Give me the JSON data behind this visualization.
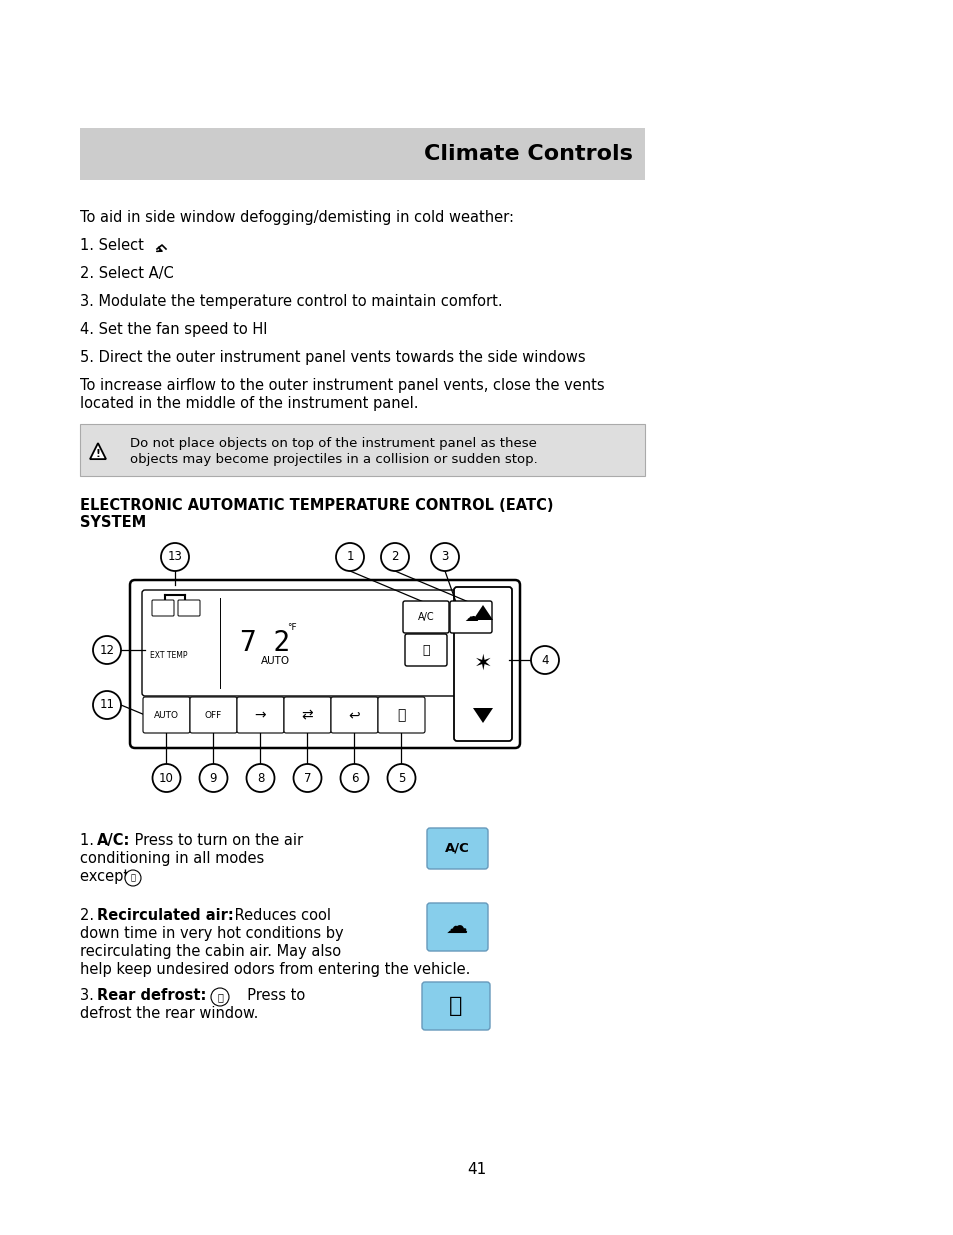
{
  "page_bg": "#ffffff",
  "title_bg": "#cccccc",
  "title_text": "Climate Controls",
  "body_fontsize": 10.5,
  "warning_text_line1": "Do not place objects on top of the instrument panel as these",
  "warning_text_line2": "objects may become projectiles in a collision or sudden stop.",
  "section_header_line1": "ELECTRONIC AUTOMATIC TEMPERATURE CONTROL (EATC)",
  "section_header_line2": "SYSTEM",
  "intro_text": "To aid in side window defogging/demisting in cold weather:",
  "step1_pre": "1. Select ",
  "step2": "2. Select A/C",
  "step3": "3. Modulate the temperature control to maintain comfort.",
  "step4": "4. Set the fan speed to HI",
  "step5": "5. Direct the outer instrument panel vents towards the side windows",
  "step6_line1": "To increase airflow to the outer instrument panel vents, close the vents",
  "step6_line2": "located in the middle of the instrument panel.",
  "desc1_num": "1. ",
  "desc1_bold": "A/C:",
  "desc1_text_line1": " Press to turn on the air",
  "desc1_text_line2": "conditioning in all modes",
  "desc1_text_line3": "except ",
  "desc2_num": "2. ",
  "desc2_bold": "Recirculated air:",
  "desc2_text_line1": " Reduces cool",
  "desc2_text_line2": "down time in very hot conditions by",
  "desc2_text_line3": "recirculating the cabin air. May also",
  "desc2_text_line4": "help keep undesired odors from entering the vehicle.",
  "desc3_num": "3. ",
  "desc3_bold": "Rear defrost:",
  "desc3_text_line1": "   Press to",
  "desc3_text_line2": "defrost the rear window.",
  "page_number": "41",
  "button_color": "#87ceeb",
  "button_edge": "#6699bb"
}
